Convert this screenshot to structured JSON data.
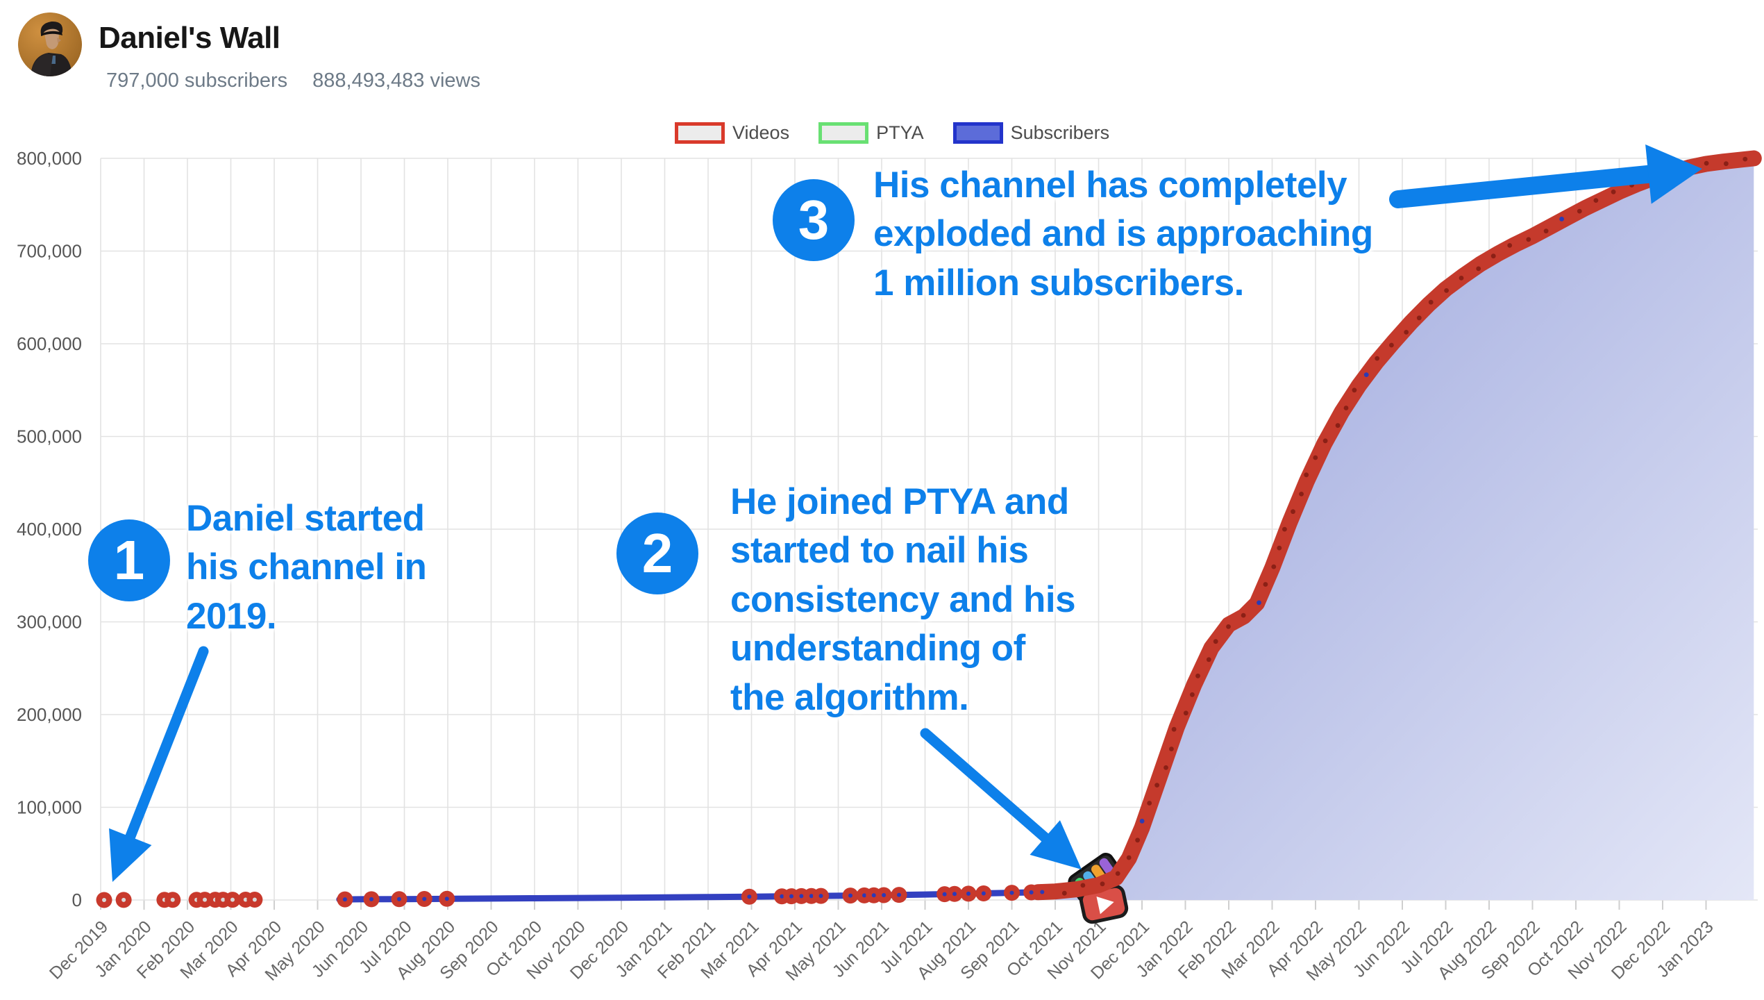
{
  "header": {
    "title": "Daniel's Wall",
    "subscribers": "797,000 subscribers",
    "views": "888,493,483 views"
  },
  "legend": {
    "items": [
      {
        "label": "Videos",
        "border": "#d93a2b",
        "fill": "#ececec"
      },
      {
        "label": "PTYA",
        "border": "#69e073",
        "fill": "#ececec"
      },
      {
        "label": "Subscribers",
        "border": "#2334cb",
        "fill": "#5c6cd9"
      }
    ]
  },
  "chart_data": {
    "type": "area",
    "title": "",
    "xlabel": "",
    "ylabel": "",
    "ylim": [
      0,
      800000
    ],
    "y_ticks": [
      0,
      100000,
      200000,
      300000,
      400000,
      500000,
      600000,
      700000,
      800000
    ],
    "x_labels": [
      "Dec 2019",
      "Jan 2020",
      "Feb 2020",
      "Mar 2020",
      "Apr 2020",
      "May 2020",
      "Jun 2020",
      "Jul 2020",
      "Aug 2020",
      "Sep 2020",
      "Oct 2020",
      "Nov 2020",
      "Dec 2020",
      "Jan 2021",
      "Feb 2021",
      "Mar 2021",
      "Apr 2021",
      "May 2021",
      "Jun 2021",
      "Jul 2021",
      "Aug 2021",
      "Sep 2021",
      "Oct 2021",
      "Nov 2021",
      "Dec 2021",
      "Jan 2022",
      "Feb 2022",
      "Mar 2022",
      "Apr 2022",
      "May 2022",
      "Jun 2022",
      "Jul 2022",
      "Aug 2022",
      "Sep 2022",
      "Oct 2022",
      "Nov 2022",
      "Dec 2022",
      "Jan 2023"
    ],
    "grid": true,
    "grid_color": "#e2e2e2",
    "tick_color": "#cfcfcf",
    "axis_label_color": "#666666",
    "legend_position": "top",
    "series": [
      {
        "name": "Subscribers",
        "color": "#3340c0",
        "points": [
          [
            0,
            0
          ],
          [
            1,
            100
          ],
          [
            2,
            200
          ],
          [
            3,
            300
          ],
          [
            4,
            400
          ],
          [
            5,
            500
          ],
          [
            5.5,
            600
          ],
          [
            6,
            800
          ],
          [
            7,
            1000
          ],
          [
            8,
            1300
          ],
          [
            9,
            1600
          ],
          [
            10,
            1900
          ],
          [
            11,
            2200
          ],
          [
            12,
            2500
          ],
          [
            13,
            2800
          ],
          [
            14,
            3200
          ],
          [
            15,
            3600
          ],
          [
            16,
            4100
          ],
          [
            17,
            4600
          ],
          [
            18,
            5200
          ],
          [
            19,
            5900
          ],
          [
            20,
            6800
          ],
          [
            21,
            7800
          ],
          [
            21.6,
            8400
          ],
          [
            22,
            9200
          ],
          [
            22.5,
            11500
          ],
          [
            23,
            16000
          ],
          [
            23.4,
            24000
          ],
          [
            23.7,
            45000
          ],
          [
            24,
            78000
          ],
          [
            24.4,
            132000
          ],
          [
            24.8,
            186000
          ],
          [
            25.2,
            232000
          ],
          [
            25.6,
            272000
          ],
          [
            26,
            297000
          ],
          [
            26.35,
            306000
          ],
          [
            26.65,
            320000
          ],
          [
            27,
            358000
          ],
          [
            27.4,
            407000
          ],
          [
            27.8,
            452000
          ],
          [
            28.2,
            492000
          ],
          [
            28.6,
            526000
          ],
          [
            29,
            555000
          ],
          [
            29.4,
            580000
          ],
          [
            29.8,
            602000
          ],
          [
            30.2,
            623000
          ],
          [
            30.6,
            642000
          ],
          [
            31,
            659000
          ],
          [
            31.4,
            673000
          ],
          [
            31.8,
            686000
          ],
          [
            32.2,
            697000
          ],
          [
            32.6,
            707000
          ],
          [
            33,
            716000
          ],
          [
            33.4,
            726000
          ],
          [
            33.8,
            736000
          ],
          [
            34.2,
            746000
          ],
          [
            34.6,
            755000
          ],
          [
            35,
            764000
          ],
          [
            35.4,
            772000
          ],
          [
            35.8,
            779000
          ],
          [
            36.2,
            785000
          ],
          [
            36.6,
            790000
          ],
          [
            37,
            794000
          ],
          [
            37.4,
            796500
          ],
          [
            37.8,
            798500
          ],
          [
            38.1,
            800000
          ]
        ]
      }
    ],
    "videos": {
      "dot_color": "#c8392c",
      "dot_center_gray": "#d9d9d9",
      "dot_center_blue": "#2b3ab8",
      "curve_color": "#c53a2c",
      "curve_center_dot_color": "#8b2016",
      "early_dot_months": [
        0.08,
        0.53,
        1.47,
        1.66,
        2.21,
        2.4,
        2.64,
        2.82,
        3.04,
        3.34,
        3.55
      ],
      "line_dot_months": [
        5.63,
        6.24,
        6.88,
        7.46,
        7.98,
        14.95,
        15.7,
        15.92,
        16.15,
        16.38,
        16.6,
        17.28,
        17.6,
        17.82,
        18.05,
        18.4,
        19.45,
        19.68,
        20.0,
        20.35,
        21.0,
        21.45,
        21.7
      ],
      "curve_from_month": 21.6
    },
    "area_gradient": {
      "from": "#95a0da",
      "to": "#e4e7f7"
    },
    "markers": {
      "ptya_logo": {
        "x": 1578,
        "y": 1264,
        "rotation": -35
      },
      "youtube_play": {
        "x": 1590,
        "y": 1302,
        "rotation": -12
      }
    }
  },
  "annotations": [
    {
      "number": "1",
      "text": "Daniel started\nhis channel in\n2019.",
      "arrow": {
        "from": [
          293,
          938
        ],
        "to": [
          162,
          1270
        ],
        "shaft": 15,
        "head": [
          70,
          66
        ]
      }
    },
    {
      "number": "2",
      "text": "He joined PTYA and\nstarted to nail his\nconsistency and his\nunderstanding of\nthe algorithm.",
      "arrow": {
        "from": [
          1333,
          1056
        ],
        "to": [
          1558,
          1252
        ],
        "shaft": 15,
        "head": [
          70,
          66
        ]
      }
    },
    {
      "number": "3",
      "text": "His channel has completely\nexploded and is approaching\n1 million subscribers.",
      "arrow": {
        "from": [
          2014,
          287
        ],
        "to": [
          2452,
          243
        ],
        "shaft": 26,
        "head": [
          78,
          86
        ]
      }
    }
  ],
  "colors": {
    "annotation_blue": "#0d80ea",
    "title_color": "#171717",
    "stats_color": "#6d7a87"
  }
}
